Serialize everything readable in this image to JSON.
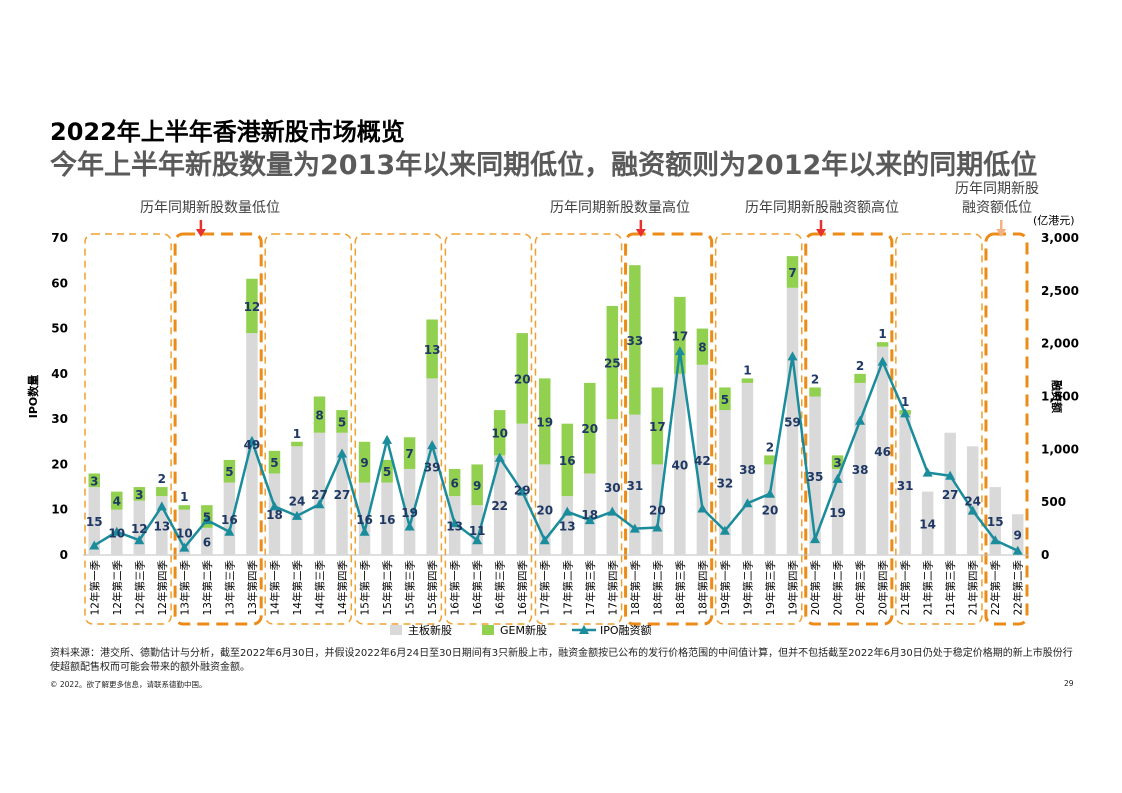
{
  "title": "2022年上半年香港新股市场概览",
  "subtitle": "今年上半年新股数量为2013年以来同期低位，融资额则为2012年以来的同期低位",
  "source_note": "资料来源：港交所、德勤估计与分析，截至2022年6月30日，并假设2022年6月24日至30日期间有3只新股上市，融资金额按已公布的发行价格范围的中间值计算，但并不包括截至2022年6月30日仍处于稳定价格期的新上市股份行使超额配售权而可能会带来的额外融资金额。",
  "copyright": "© 2022。欲了解更多信息，请联系德勤中国。",
  "page_number": "29",
  "colors": {
    "main_board": "#d9d9d9",
    "gem": "#92d050",
    "ipo_line": "#1a8c9c",
    "box_dashed": "#f0a030",
    "box_solid": "#ec8b17",
    "arrow_red": "#e8312f",
    "arrow_light": "#f4b183",
    "label_dark": "#1f3864"
  },
  "chart_data": {
    "type": "bar",
    "categories": [
      "12年第一季",
      "12年第二季",
      "12年第三季",
      "12年第四季",
      "13年第一季",
      "13年第二季",
      "13年第三季",
      "13年第四季",
      "14年第一季",
      "14年第二季",
      "14年第三季",
      "14年第四季",
      "15年第一季",
      "15年第二季",
      "15年第三季",
      "15年第四季",
      "16年第一季",
      "16年第二季",
      "16年第三季",
      "16年第四季",
      "17年第一季",
      "17年第二季",
      "17年第三季",
      "17年第四季",
      "18年第一季",
      "18年第二季",
      "18年第三季",
      "18年第四季",
      "19年第一季",
      "19年第二季",
      "19年第三季",
      "19年第四季",
      "20年第一季",
      "20年第二季",
      "20年第三季",
      "20年第四季",
      "21年第一季",
      "21年第二季",
      "21年第三季",
      "21年第四季",
      "22年第一季",
      "22年第二季"
    ],
    "series": [
      {
        "name": "主板新股",
        "values": [
          15,
          10,
          12,
          13,
          10,
          6,
          16,
          49,
          18,
          24,
          27,
          27,
          16,
          16,
          19,
          39,
          13,
          11,
          22,
          29,
          20,
          13,
          18,
          30,
          31,
          20,
          40,
          42,
          32,
          38,
          20,
          59,
          35,
          19,
          38,
          46,
          31,
          14,
          27,
          24,
          15,
          9
        ]
      },
      {
        "name": "GEM新股",
        "values": [
          3,
          4,
          3,
          2,
          1,
          5,
          5,
          12,
          5,
          1,
          8,
          5,
          9,
          5,
          7,
          13,
          6,
          9,
          10,
          20,
          19,
          16,
          20,
          25,
          33,
          17,
          17,
          8,
          5,
          1,
          2,
          7,
          2,
          3,
          2,
          1,
          1,
          0,
          0,
          0,
          0,
          0
        ]
      },
      {
        "name": "IPO融资额",
        "values": [
          90,
          220,
          140,
          460,
          70,
          330,
          220,
          1080,
          460,
          370,
          480,
          960,
          220,
          1090,
          270,
          1040,
          300,
          140,
          920,
          600,
          140,
          410,
          330,
          410,
          250,
          260,
          1930,
          440,
          230,
          490,
          580,
          1880,
          150,
          720,
          1270,
          1830,
          1340,
          780,
          750,
          420,
          140,
          40
        ]
      }
    ],
    "bar_labels": {
      "main": [
        "15",
        "10",
        "12",
        "13",
        "10",
        "6",
        "16",
        "49",
        "18",
        "24",
        "27",
        "27",
        "16",
        "16",
        "19",
        "39",
        "13",
        "11",
        "22",
        "29",
        "20",
        "13",
        "18",
        "30",
        "31",
        "20",
        "40",
        "42",
        "32",
        "38",
        "20",
        "59",
        "35",
        "19",
        "38",
        "46",
        "31",
        "14",
        "27",
        "24",
        "15",
        "9"
      ],
      "gem": [
        "3",
        "4",
        "3",
        "2",
        "1",
        "5",
        "5",
        "12",
        "5",
        "1",
        "8",
        "5",
        "9",
        "5",
        "7",
        "13",
        "6",
        "9",
        "10",
        "20",
        "19",
        "16",
        "20",
        "25",
        "33",
        "17",
        "17",
        "8",
        "5",
        "1",
        "2",
        "7",
        "2",
        "3",
        "2",
        "1",
        "1",
        "",
        "",
        "",
        "",
        ""
      ]
    },
    "ylabel": "IPO数量",
    "y2label": "融资额",
    "y2unit": "(亿港元)",
    "ylim": [
      0,
      70
    ],
    "yticks": [
      "0",
      "10",
      "20",
      "30",
      "40",
      "50",
      "60",
      "70"
    ],
    "y2lim": [
      0,
      3000
    ],
    "y2ticks": [
      "0",
      "500",
      "1,000",
      "1,500",
      "2,000",
      "2,500",
      "3,000"
    ],
    "legend": [
      "主板新股",
      "GEM新股",
      "IPO融资额"
    ],
    "annotations": [
      {
        "text": "历年同期新股数量低位",
        "arrow": "red"
      },
      {
        "text": "历年同期新股数量高位",
        "arrow": "red"
      },
      {
        "text": "历年同期新股融资额高位",
        "arrow": "red"
      },
      {
        "text": "历年同期新股",
        "arrow": "none"
      },
      {
        "text": "融资额低位",
        "arrow": "light"
      }
    ]
  }
}
